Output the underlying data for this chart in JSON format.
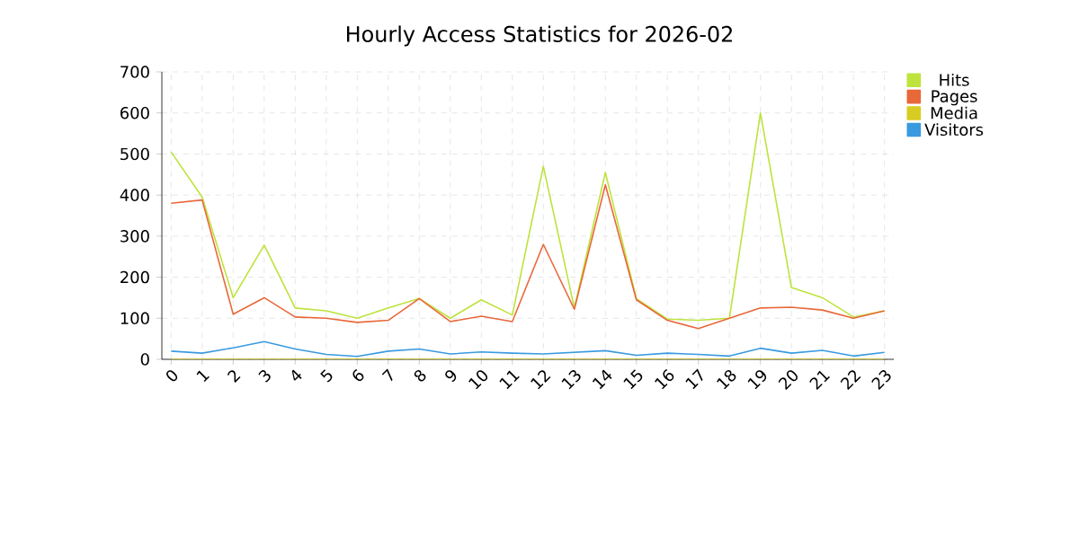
{
  "chart_data": {
    "type": "line",
    "title": "Hourly Access Statistics for 2026-02",
    "categories": [
      "0",
      "1",
      "2",
      "3",
      "4",
      "5",
      "6",
      "7",
      "8",
      "9",
      "10",
      "11",
      "12",
      "13",
      "14",
      "15",
      "16",
      "17",
      "18",
      "19",
      "20",
      "21",
      "22",
      "23"
    ],
    "series": [
      {
        "name": "Hits",
        "color": "#bde33c",
        "values": [
          505,
          395,
          150,
          278,
          125,
          118,
          100,
          125,
          148,
          100,
          145,
          108,
          470,
          125,
          455,
          148,
          98,
          95,
          100,
          600,
          175,
          150,
          103,
          118
        ]
      },
      {
        "name": "Pages",
        "color": "#e8683a",
        "values": [
          380,
          388,
          110,
          150,
          103,
          100,
          90,
          95,
          148,
          92,
          105,
          92,
          280,
          122,
          425,
          145,
          95,
          75,
          100,
          125,
          127,
          120,
          100,
          118
        ]
      },
      {
        "name": "Media",
        "color": "#d8cc22",
        "values": [
          0,
          0,
          0,
          0,
          0,
          0,
          0,
          0,
          0,
          0,
          0,
          0,
          0,
          0,
          0,
          0,
          0,
          0,
          0,
          0,
          0,
          0,
          0,
          0
        ]
      },
      {
        "name": "Visitors",
        "color": "#3a9ae0",
        "values": [
          20,
          15,
          28,
          43,
          25,
          12,
          7,
          20,
          25,
          13,
          18,
          15,
          13,
          17,
          21,
          10,
          15,
          12,
          8,
          27,
          15,
          22,
          8,
          17
        ]
      }
    ],
    "ylim": [
      0,
      700
    ],
    "yticks": [
      0,
      100,
      200,
      300,
      400,
      500,
      600,
      700
    ],
    "grid": true,
    "legend": "top right",
    "line_style": "solid",
    "marker": "none"
  }
}
